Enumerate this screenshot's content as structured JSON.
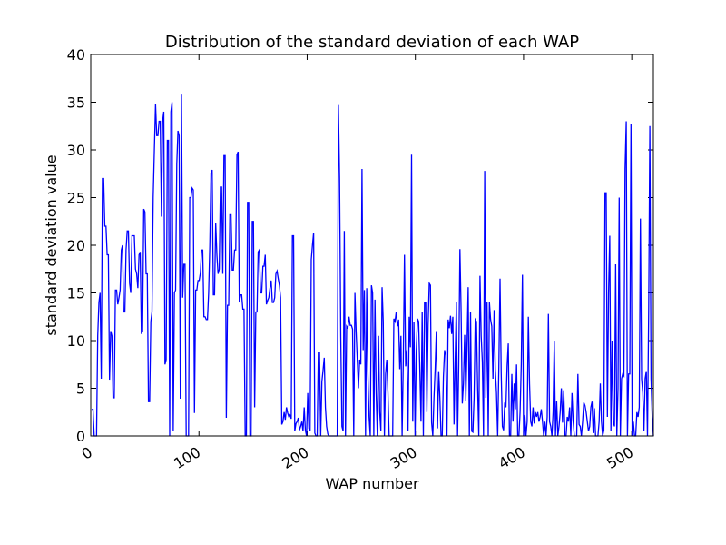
{
  "chart_data": {
    "type": "line",
    "title": "Distribution of the standard deviation of each WAP",
    "xlabel": "WAP number",
    "ylabel": "standard deviation value",
    "xlim": [
      0,
      520
    ],
    "ylim": [
      0,
      40
    ],
    "x_ticks": [
      0,
      100,
      200,
      300,
      400,
      500
    ],
    "y_ticks": [
      0,
      5,
      10,
      15,
      20,
      25,
      30,
      35,
      40
    ],
    "grid": false,
    "legend": "none",
    "series": [
      {
        "color": "#0000ff",
        "x_start": 1,
        "values": [
          2.8,
          2.8,
          0,
          0,
          0,
          10.5,
          14,
          15,
          6,
          27,
          27,
          22,
          22,
          19,
          19,
          5.9,
          11,
          10.5,
          4,
          4,
          15.3,
          15.3,
          13.8,
          14.5,
          15.3,
          19.5,
          20,
          13,
          13,
          19.5,
          21.5,
          21.5,
          16,
          15,
          21,
          21,
          21,
          17.5,
          17,
          15.5,
          19,
          19.3,
          10.7,
          11,
          23.8,
          23.5,
          17,
          17,
          3.6,
          3.6,
          12,
          13,
          25,
          30,
          34.8,
          31.5,
          31.5,
          33,
          33,
          23,
          33,
          34,
          7.5,
          8,
          31,
          31,
          0,
          34,
          35,
          0.5,
          15,
          15.3,
          28.5,
          32,
          31.5,
          3.9,
          35.8,
          14.5,
          18,
          18,
          0,
          0,
          0,
          25,
          25,
          26,
          25.8,
          2.4,
          15.3,
          15.3,
          16.3,
          16.3,
          17.1,
          19.5,
          19.5,
          12.5,
          12.5,
          12.2,
          12.2,
          15,
          20,
          27.5,
          27.9,
          14.8,
          14.8,
          22.3,
          19,
          17,
          17.5,
          26.1,
          26.1,
          17,
          29.4,
          29.4,
          1.9,
          13.7,
          13.7,
          23.2,
          23.2,
          17.4,
          17.4,
          19.5,
          19.5,
          29.5,
          29.8,
          14,
          14.8,
          14.8,
          13.3,
          13.3,
          0,
          0,
          24.5,
          24.5,
          0,
          0,
          22.5,
          22.5,
          3,
          13,
          13,
          19.3,
          19.5,
          15,
          15,
          17.8,
          17.8,
          19,
          13.8,
          14.2,
          14.5,
          15.5,
          16.3,
          14,
          14,
          14.5,
          17,
          17.3,
          16.5,
          15.8,
          14.5,
          1.2,
          1.5,
          2.5,
          1.7,
          3,
          2.4,
          2,
          2.2,
          1.8,
          21,
          21,
          0.5,
          1.3,
          1.5,
          1.9,
          0.6,
          1,
          1.5,
          0.5,
          3,
          0.6,
          0,
          4.5,
          0.8,
          0.5,
          18.5,
          20,
          21.3,
          0.3,
          0,
          0,
          8.7,
          8.7,
          0,
          5.7,
          6.9,
          8.2,
          3,
          1,
          0.2,
          0,
          0,
          0,
          0,
          0,
          0,
          0,
          0,
          34.7,
          27,
          10.5,
          1,
          0.5,
          21.5,
          0,
          11.5,
          11.3,
          12.5,
          11.6,
          11.6,
          11.2,
          0,
          15,
          11,
          8,
          5,
          8,
          7.5,
          28,
          9,
          15.3,
          0,
          15.5,
          6.5,
          2,
          0,
          15.8,
          15,
          0,
          14.3,
          4.5,
          0,
          10.5,
          2.5,
          0.5,
          15.6,
          12,
          0,
          6.5,
          8,
          4.5,
          0,
          0,
          0,
          0,
          12.3,
          12,
          13,
          11.5,
          12.2,
          7,
          10.5,
          0,
          8,
          19,
          7.3,
          9,
          0.5,
          12.5,
          9.3,
          29.5,
          1.5,
          12,
          0,
          9,
          12.3,
          12,
          7,
          1.5,
          13,
          0,
          14,
          14,
          2.5,
          11.5,
          16,
          15.8,
          1.4,
          0,
          4,
          7,
          11,
          0.8,
          6.8,
          4,
          0,
          0,
          6.2,
          9,
          8.5,
          0,
          12.2,
          11.3,
          12.6,
          10.7,
          12.5,
          1.2,
          8,
          14,
          0,
          7.5,
          19.6,
          13,
          3.4,
          5.5,
          10.6,
          3.7,
          9.4,
          15.6,
          0,
          13,
          0.5,
          0.4,
          4,
          12.2,
          12,
          5.1,
          0,
          16.8,
          10.5,
          7.8,
          0,
          27.8,
          4,
          14,
          0,
          14,
          12.2,
          11.5,
          6,
          13.2,
          7,
          4.5,
          0,
          7.3,
          16.5,
          6.5,
          1,
          0.6,
          3.5,
          3,
          7.3,
          9.7,
          0,
          0,
          6.5,
          1.5,
          5.5,
          2.8,
          7.5,
          0,
          0,
          2.5,
          7.5,
          16.9,
          0,
          2.2,
          0,
          1.5,
          12.5,
          5.5,
          1.5,
          1,
          3,
          1.3,
          2.5,
          2,
          2.5,
          1.5,
          2,
          2.8,
          1.5,
          0,
          1.5,
          0,
          2,
          12.8,
          1.5,
          1,
          0,
          2.5,
          10,
          0,
          3.7,
          0,
          1,
          2.5,
          5,
          1.4,
          4.8,
          0,
          0,
          2,
          1.5,
          3,
          0,
          4.5,
          1.5,
          0,
          0,
          0,
          6.5,
          1.2,
          1,
          0,
          1.5,
          3.5,
          3.2,
          2.5,
          1.5,
          0.5,
          1,
          3,
          3.6,
          0.3,
          2.9,
          0,
          0,
          0,
          1.5,
          5.5,
          1.5,
          0,
          0.6,
          25.5,
          25.5,
          2,
          15,
          21,
          0.5,
          10,
          1.5,
          1,
          18,
          0,
          5,
          25,
          0,
          6,
          6.5,
          6.3,
          28,
          33,
          0,
          6.5,
          6.5,
          32.7,
          0,
          1.5,
          0,
          0,
          2.5,
          2,
          3,
          22.8,
          6,
          4.5,
          0.5,
          6,
          6.8,
          0,
          13.2,
          32.5,
          6,
          2,
          0
        ]
      }
    ]
  }
}
